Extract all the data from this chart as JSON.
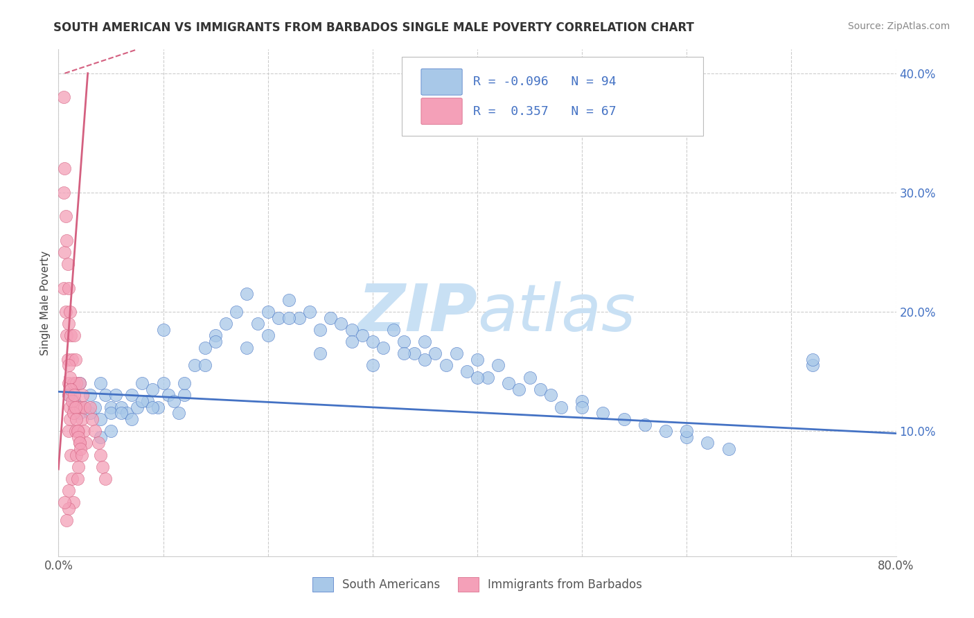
{
  "title": "SOUTH AMERICAN VS IMMIGRANTS FROM BARBADOS SINGLE MALE POVERTY CORRELATION CHART",
  "source": "Source: ZipAtlas.com",
  "ylabel": "Single Male Poverty",
  "xlim": [
    0.0,
    0.8
  ],
  "ylim": [
    -0.005,
    0.42
  ],
  "ytick_labels": [
    "10.0%",
    "20.0%",
    "30.0%",
    "40.0%"
  ],
  "ytick_positions": [
    0.1,
    0.2,
    0.3,
    0.4
  ],
  "blue_R": -0.096,
  "blue_N": 94,
  "pink_R": 0.357,
  "pink_N": 67,
  "blue_color": "#a8c8e8",
  "pink_color": "#f4a0b8",
  "blue_line_color": "#4472c4",
  "pink_line_color": "#d46080",
  "watermark_zip": "ZIP",
  "watermark_atlas": "atlas",
  "watermark_color": "#c8e0f4",
  "legend_label_blue": "South Americans",
  "legend_label_pink": "Immigrants from Barbados",
  "blue_trend_x0": 0.0,
  "blue_trend_y0": 0.133,
  "blue_trend_x1": 0.8,
  "blue_trend_y1": 0.098,
  "pink_trend_x0": 0.0,
  "pink_trend_y0": 0.068,
  "pink_trend_x1": 0.028,
  "pink_trend_y1": 0.4,
  "pink_trend_dashed_x0": 0.006,
  "pink_trend_dashed_y0": 0.4,
  "pink_trend_dashed_x1": 0.075,
  "pink_trend_dashed_y1": 0.42
}
